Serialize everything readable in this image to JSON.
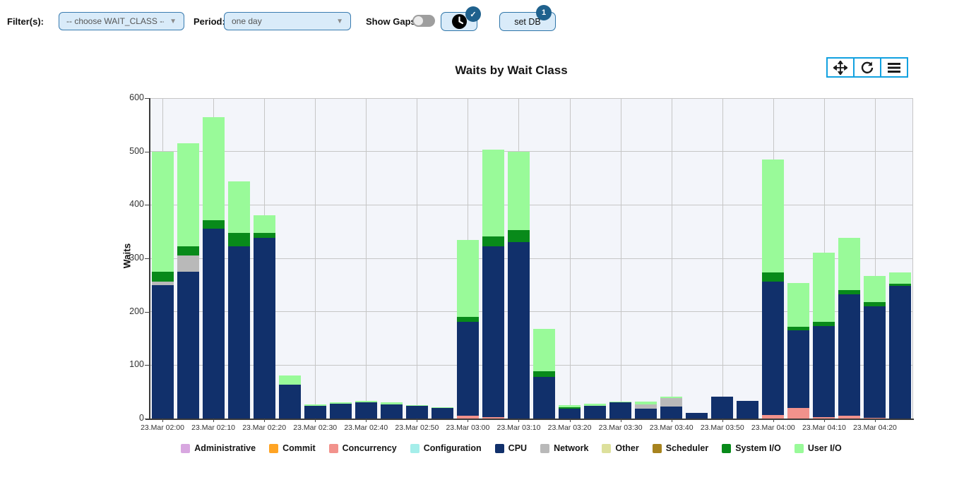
{
  "controls": {
    "filters_label": "Filter(s):",
    "filter_select_value": "-- choose WAIT_CLASS --",
    "period_label": "Period:",
    "period_select_value": "one day",
    "show_gaps_label": "Show Gaps:",
    "show_gaps_on": false,
    "clock_button_badge": "✓",
    "set_db_label": "set DB",
    "set_db_badge": "1"
  },
  "modebar_icons": [
    "pan-icon",
    "refresh-icon",
    "menu-icon"
  ],
  "chart_data": {
    "type": "bar",
    "stacked": true,
    "title": "Waits by Wait Class",
    "ylabel": "Waits",
    "ylim": [
      0,
      600
    ],
    "yticks": [
      0,
      100,
      200,
      300,
      400,
      500,
      600
    ],
    "grid": true,
    "legend_position": "bottom",
    "x_tick_every": 2,
    "plot_bg": "#f3f5fa",
    "categories": [
      "23.Mar 02:00",
      "23.Mar 02:05",
      "23.Mar 02:10",
      "23.Mar 02:15",
      "23.Mar 02:20",
      "23.Mar 02:25",
      "23.Mar 02:30",
      "23.Mar 02:35",
      "23.Mar 02:40",
      "23.Mar 02:45",
      "23.Mar 02:50",
      "23.Mar 02:55",
      "23.Mar 03:00",
      "23.Mar 03:05",
      "23.Mar 03:10",
      "23.Mar 03:15",
      "23.Mar 03:20",
      "23.Mar 03:25",
      "23.Mar 03:30",
      "23.Mar 03:35",
      "23.Mar 03:40",
      "23.Mar 03:45",
      "23.Mar 03:50",
      "23.Mar 03:55",
      "23.Mar 04:00",
      "23.Mar 04:05",
      "23.Mar 04:10",
      "23.Mar 04:15",
      "23.Mar 04:20",
      "23.Mar 04:25"
    ],
    "tick_labels": [
      "23.Mar 02:00",
      "23.Mar 02:10",
      "23.Mar 02:20",
      "23.Mar 02:30",
      "23.Mar 02:40",
      "23.Mar 02:50",
      "23.Mar 03:00",
      "23.Mar 03:10",
      "23.Mar 03:20",
      "23.Mar 03:30",
      "23.Mar 03:40",
      "23.Mar 03:50",
      "23.Mar 04:00",
      "23.Mar 04:10",
      "23.Mar 04:20"
    ],
    "series": [
      {
        "name": "Administrative",
        "color": "#d8a7e0",
        "values": [
          0,
          0,
          0,
          0,
          0,
          0,
          0,
          0,
          0,
          0,
          0,
          0,
          0,
          0,
          0,
          0,
          0,
          0,
          0,
          0,
          0,
          0,
          0,
          0,
          0,
          0,
          0,
          0,
          0,
          0
        ]
      },
      {
        "name": "Commit",
        "color": "#ffa424",
        "values": [
          0,
          0,
          0,
          0,
          0,
          0,
          0,
          0,
          0,
          0,
          0,
          0,
          0,
          0,
          0,
          0,
          0,
          0,
          0,
          0,
          0,
          0,
          0,
          0,
          0,
          0,
          0,
          0,
          0,
          0
        ]
      },
      {
        "name": "Concurrency",
        "color": "#f2928c",
        "values": [
          0,
          0,
          0,
          0,
          0,
          0,
          0,
          0,
          0,
          0,
          0,
          0,
          5,
          3,
          0,
          0,
          0,
          0,
          0,
          0,
          0,
          0,
          0,
          0,
          7,
          20,
          3,
          5,
          2,
          0
        ]
      },
      {
        "name": "Configuration",
        "color": "#a5eeea",
        "values": [
          0,
          0,
          0,
          0,
          0,
          0,
          0,
          0,
          0,
          0,
          0,
          0,
          0,
          0,
          0,
          0,
          0,
          0,
          0,
          0,
          0,
          0,
          0,
          0,
          0,
          0,
          0,
          0,
          0,
          0
        ]
      },
      {
        "name": "CPU",
        "color": "#11306b",
        "values": [
          250,
          275,
          355,
          323,
          339,
          64,
          24,
          28,
          31,
          27,
          24,
          20,
          176,
          320,
          331,
          78,
          19,
          24,
          30,
          19,
          23,
          11,
          41,
          33,
          250,
          145,
          170,
          227,
          208,
          249
        ]
      },
      {
        "name": "Network",
        "color": "#b9b9b9",
        "values": [
          7,
          30,
          0,
          0,
          0,
          0,
          0,
          0,
          0,
          0,
          0,
          0,
          0,
          0,
          0,
          0,
          0,
          0,
          0,
          8,
          15,
          0,
          0,
          0,
          0,
          0,
          0,
          0,
          0,
          0
        ]
      },
      {
        "name": "Other",
        "color": "#dde09c",
        "values": [
          0,
          0,
          0,
          0,
          0,
          0,
          0,
          0,
          0,
          0,
          0,
          0,
          0,
          0,
          0,
          0,
          0,
          0,
          0,
          0,
          0,
          0,
          0,
          0,
          0,
          0,
          0,
          0,
          0,
          0
        ]
      },
      {
        "name": "Scheduler",
        "color": "#a7831e",
        "values": [
          0,
          0,
          0,
          0,
          0,
          0,
          0,
          0,
          0,
          0,
          0,
          0,
          0,
          0,
          0,
          0,
          0,
          0,
          0,
          0,
          0,
          0,
          0,
          0,
          0,
          0,
          0,
          0,
          0,
          0
        ]
      },
      {
        "name": "System I/O",
        "color": "#088a1a",
        "values": [
          18,
          17,
          17,
          24,
          8,
          0,
          0,
          0,
          0,
          0,
          0,
          0,
          9,
          18,
          22,
          10,
          2,
          0,
          0,
          0,
          0,
          0,
          0,
          0,
          17,
          7,
          8,
          9,
          8,
          3
        ]
      },
      {
        "name": "User I/O",
        "color": "#99fa99",
        "values": [
          225,
          194,
          193,
          97,
          33,
          16,
          2,
          3,
          2,
          4,
          1,
          1,
          145,
          162,
          147,
          80,
          4,
          4,
          2,
          5,
          3,
          0,
          0,
          0,
          211,
          82,
          130,
          97,
          49,
          22
        ]
      }
    ]
  }
}
